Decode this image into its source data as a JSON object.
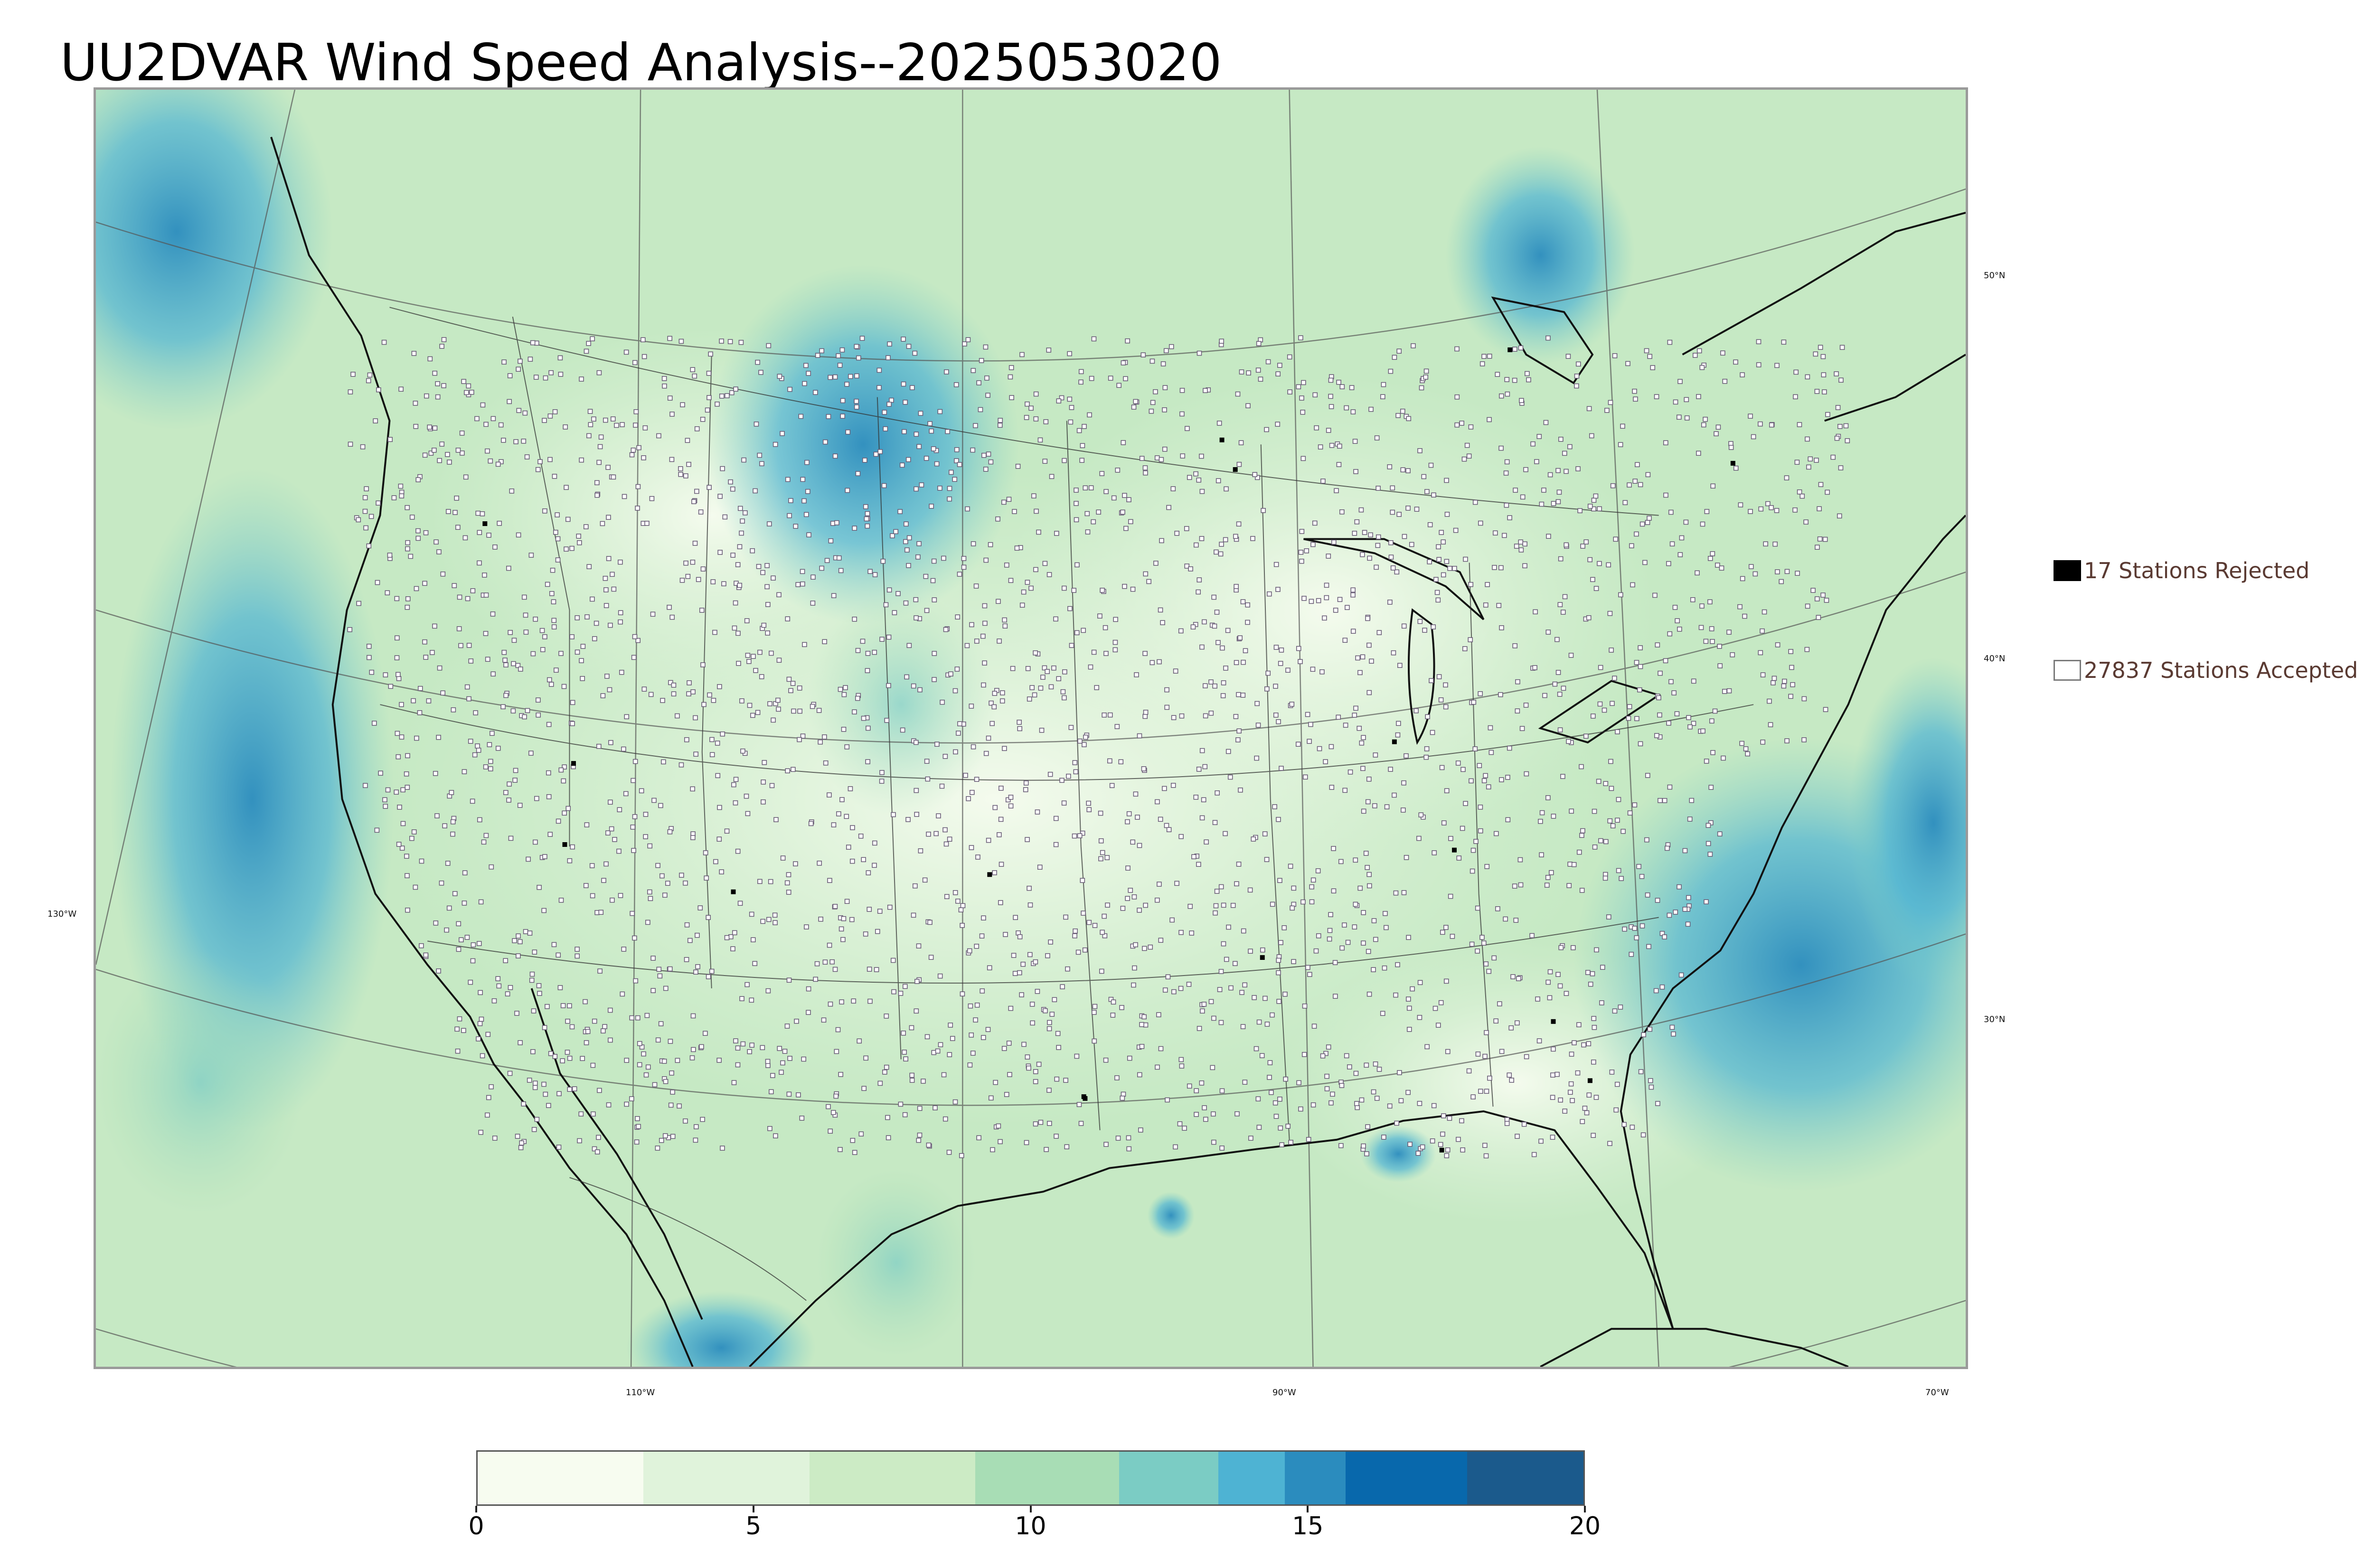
{
  "title": "UU2DVAR Wind Speed Analysis--2025053020",
  "legend": {
    "rejected": {
      "label": "17 Stations Rejected",
      "color": "#000000"
    },
    "accepted": {
      "label": "27837 Stations Accepted",
      "color": "#ffffff"
    }
  },
  "graticule": {
    "lat_labels": [
      "50°N",
      "40°N",
      "30°N"
    ],
    "lon_labels": [
      "130°W",
      "110°W",
      "90°W",
      "70°W"
    ]
  },
  "colorbar": {
    "min": 0,
    "max": 20,
    "tick_labels": [
      "0",
      "5",
      "10",
      "15",
      "20"
    ],
    "colors": [
      "#f7fcf0",
      "#e0f3db",
      "#ccebc5",
      "#a8ddb5",
      "#7bccc4",
      "#4eb3d3",
      "#2b8cbe",
      "#0868ac",
      "#1b5a8c"
    ]
  }
}
